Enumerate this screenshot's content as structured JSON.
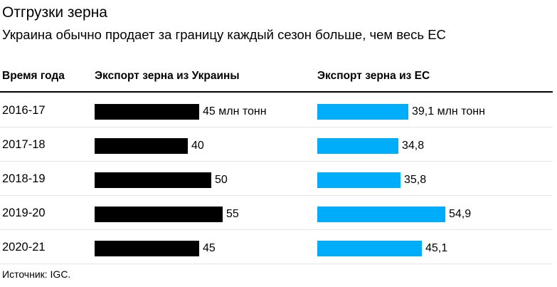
{
  "header": {
    "title": "Отгрузки зерна",
    "subtitle": "Украина обычно продает за границу каждый сезон больше, чем весь ЕС"
  },
  "columns": {
    "year": "Время года",
    "ukraine": "Экспорт зерна из Украины",
    "eu": "Экспорт зерна из ЕС"
  },
  "colors": {
    "ukraine": "#000000",
    "eu": "#00adfb"
  },
  "chart_data": {
    "type": "bar",
    "orientation": "horizontal",
    "categories": [
      "2016-17",
      "2017-18",
      "2018-19",
      "2019-20",
      "2020-21"
    ],
    "series": [
      {
        "name": "Экспорт зерна из Украины",
        "values": [
          45,
          40,
          50,
          55,
          45
        ],
        "labels": [
          "45 млн тонн",
          "40",
          "50",
          "55",
          "45"
        ]
      },
      {
        "name": "Экспорт зерна из ЕС",
        "values": [
          39.1,
          34.8,
          35.8,
          54.9,
          45.1
        ],
        "labels": [
          "39,1 млн тонн",
          "34,8",
          "35,8",
          "54,9",
          "45,1"
        ]
      }
    ],
    "grid": false,
    "legend": "column-headers"
  },
  "footer": {
    "source": "Источник: IGC."
  }
}
